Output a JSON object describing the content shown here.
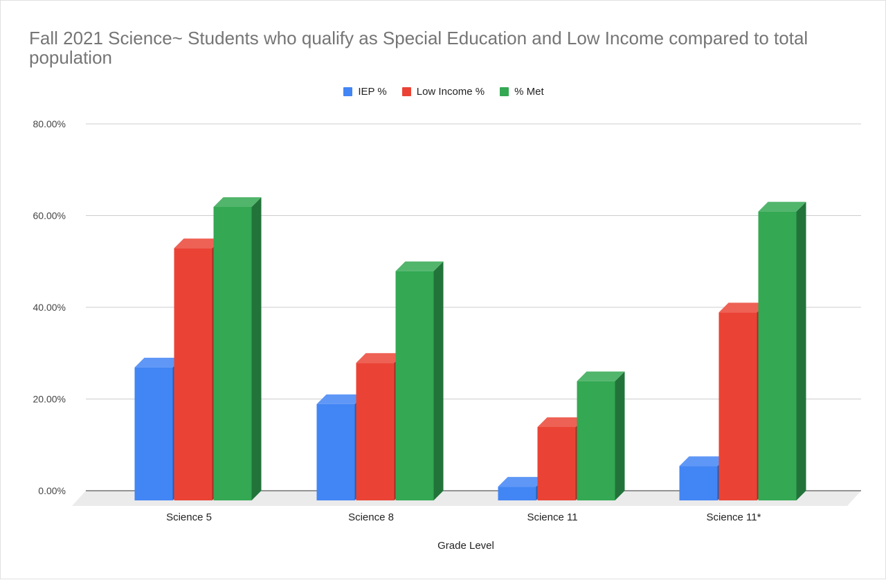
{
  "chart_data": {
    "type": "bar",
    "title": "Fall 2021 Science~ Students who qualify as Special Education and Low Income compared to total population",
    "xlabel": "Grade Level",
    "ylabel": "",
    "categories": [
      "Science 5",
      "Science 8",
      "Science 11",
      "Science 11*"
    ],
    "series": [
      {
        "name": "IEP %",
        "values": [
          0.29,
          0.21,
          0.03,
          0.075
        ]
      },
      {
        "name": "Low Income %",
        "values": [
          0.55,
          0.3,
          0.16,
          0.41
        ]
      },
      {
        "name": "% Met",
        "values": [
          0.64,
          0.5,
          0.26,
          0.63
        ]
      }
    ],
    "ylim": [
      0,
      0.8
    ],
    "yticks": [
      0,
      0.2,
      0.4,
      0.6,
      0.8
    ],
    "ytick_labels": [
      "0.00%",
      "20.00%",
      "40.00%",
      "60.00%",
      "80.00%"
    ],
    "grid": true,
    "legend_position": "top",
    "style": "3d-bar",
    "colors": {
      "IEP %": {
        "front": "#4285f4",
        "top": "#5f97f6",
        "side": "#2a5db0"
      },
      "Low Income %": {
        "front": "#ea4335",
        "top": "#ee6155",
        "side": "#a52f26"
      },
      "% Met": {
        "front": "#34a853",
        "top": "#52b56c",
        "side": "#22733a"
      }
    }
  }
}
